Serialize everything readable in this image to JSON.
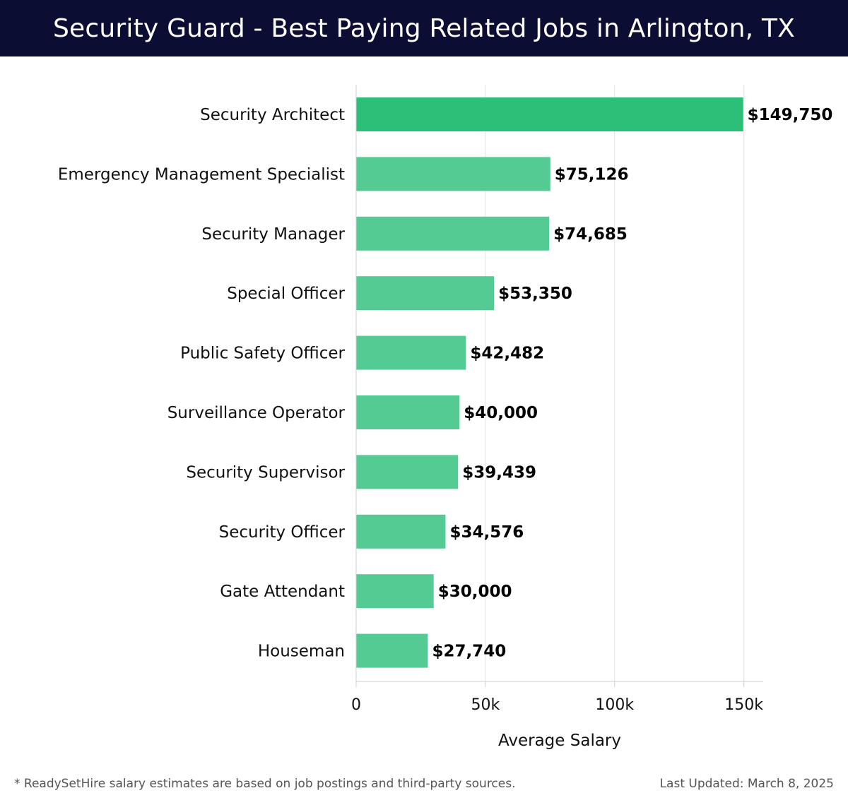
{
  "header": {
    "title": "Security Guard - Best Paying Related Jobs in Arlington, TX"
  },
  "chart_data": {
    "type": "bar",
    "orientation": "horizontal",
    "title": "Security Guard - Best Paying Related Jobs in Arlington, TX",
    "xlabel": "Average Salary",
    "ylabel": "",
    "xlim": [
      0,
      157500
    ],
    "xticks": [
      0,
      50000,
      100000,
      150000
    ],
    "xtick_labels": [
      "0",
      "50k",
      "100k",
      "150k"
    ],
    "grid": true,
    "categories": [
      "Security Architect",
      "Emergency Management Specialist",
      "Security Manager",
      "Special Officer",
      "Public Safety Officer",
      "Surveillance Operator",
      "Security Supervisor",
      "Security Officer",
      "Gate Attendant",
      "Houseman"
    ],
    "values": [
      149750,
      75126,
      74685,
      53350,
      42482,
      40000,
      39439,
      34576,
      30000,
      27740
    ],
    "value_labels": [
      "$149,750",
      "$75,126",
      "$74,685",
      "$53,350",
      "$42,482",
      "$40,000",
      "$39,439",
      "$34,576",
      "$30,000",
      "$27,740"
    ],
    "colors": {
      "top": "#2bbf78",
      "bar": "#53cb93",
      "grid": "#e3e3e3",
      "axis": "#cfcfcf"
    }
  },
  "footer": {
    "note": "* ReadySetHire salary estimates are based on job postings and third-party sources.",
    "updated": "Last Updated: March 8, 2025"
  }
}
